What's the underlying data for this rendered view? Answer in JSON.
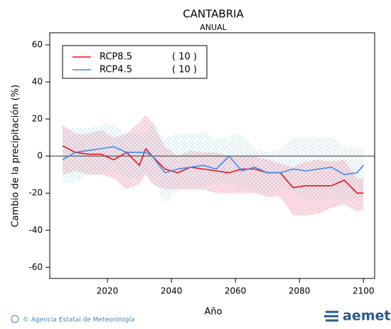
{
  "chart_data": {
    "type": "band-line",
    "title": "CANTABRIA",
    "subtitle": "ANUAL",
    "xlabel": "Año",
    "ylabel": "Cambio de la precipitación (%)",
    "x": [
      2006,
      2010,
      2014,
      2018,
      2022,
      2026,
      2030,
      2032,
      2034,
      2038,
      2042,
      2046,
      2050,
      2054,
      2058,
      2062,
      2066,
      2070,
      2074,
      2078,
      2082,
      2086,
      2090,
      2094,
      2098,
      2100
    ],
    "xlim": [
      2002,
      2103.5
    ],
    "xticks": [
      2020,
      2040,
      2060,
      2080,
      2100
    ],
    "ylim": [
      -66,
      66.5
    ],
    "yticks": [
      -60,
      -40,
      -20,
      0,
      20,
      40,
      60
    ],
    "hline": 0,
    "legend_position": "upper left",
    "series": [
      {
        "name": "RCP8.5",
        "count": "( 10 )",
        "color": "#e8141c",
        "band_color": "#f5a3b3",
        "values": [
          5.5,
          2,
          1,
          1,
          -2,
          2,
          -5,
          4,
          0,
          -7,
          -9,
          -6,
          -7,
          -8,
          -9,
          -7,
          -7,
          -9,
          -9,
          -17,
          -16,
          -16,
          -16,
          -13,
          -20,
          -20
        ],
        "upper": [
          17,
          12,
          12,
          14,
          10,
          12,
          18,
          22,
          18,
          5,
          0,
          3,
          2,
          2,
          0,
          0,
          0,
          -2,
          -4,
          -6,
          -3,
          -2,
          -3,
          -2,
          -12,
          -12
        ],
        "lower": [
          -10,
          -8,
          -10,
          -10,
          -12,
          -18,
          -15,
          -10,
          -15,
          -18,
          -18,
          -18,
          -18,
          -20,
          -20,
          -20,
          -20,
          -22,
          -22,
          -32,
          -32,
          -31,
          -28,
          -26,
          -30,
          -29
        ]
      },
      {
        "name": "RCP4.5",
        "count": "( 10 )",
        "color": "#3a8ee6",
        "band_color": "#8fd0e3",
        "values": [
          -2,
          2,
          3,
          4,
          5,
          2,
          2,
          2,
          0,
          -9,
          -7,
          -6,
          -5,
          -7,
          0,
          -8,
          -6,
          -9,
          -9,
          -7,
          -8,
          -7,
          -6,
          -10,
          -9,
          -5
        ],
        "upper": [
          14,
          15,
          15,
          17,
          17,
          12,
          12,
          12,
          18,
          10,
          12,
          12,
          13,
          9,
          11,
          12,
          4,
          2,
          4,
          10,
          10,
          10,
          10,
          5,
          4,
          4
        ],
        "lower": [
          -15,
          -14,
          -10,
          -10,
          -8,
          -12,
          -12,
          -8,
          -12,
          -25,
          -18,
          -17,
          -17,
          -14,
          -14,
          -18,
          -18,
          -22,
          -18,
          -18,
          -24,
          -24,
          -23,
          -25,
          -22,
          -22
        ]
      }
    ]
  },
  "footer": {
    "credit": "© Agencia Estatal de Meteorología",
    "logo": "aemet"
  }
}
